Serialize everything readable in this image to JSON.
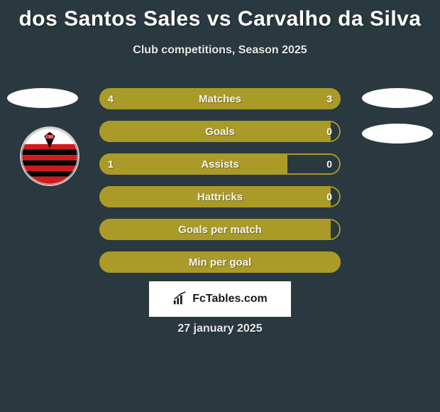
{
  "title": "dos Santos Sales vs Carvalho da Silva",
  "subtitle": "Club competitions, Season 2025",
  "date": "27 january 2025",
  "brand": "FcTables.com",
  "colors": {
    "background": "#2a3840",
    "accent": "#aa9a28",
    "border": "#aa9a28",
    "inner_bg": "transparent",
    "text": "#ffffff"
  },
  "stats": [
    {
      "label": "Matches",
      "left_val": "4",
      "right_val": "3",
      "left_pct": 57,
      "right_pct": 43,
      "left_fill": "#aa9a28",
      "right_fill": "#aa9a28"
    },
    {
      "label": "Goals",
      "left_val": "",
      "right_val": "0",
      "left_pct": 96,
      "right_pct": 0,
      "left_fill": "#aa9a28",
      "right_fill": "transparent"
    },
    {
      "label": "Assists",
      "left_val": "1",
      "right_val": "0",
      "left_pct": 78,
      "right_pct": 0,
      "left_fill": "#aa9a28",
      "right_fill": "transparent"
    },
    {
      "label": "Hattricks",
      "left_val": "",
      "right_val": "0",
      "left_pct": 96,
      "right_pct": 0,
      "left_fill": "#aa9a28",
      "right_fill": "transparent"
    },
    {
      "label": "Goals per match",
      "left_val": "",
      "right_val": "",
      "left_pct": 96,
      "right_pct": 0,
      "left_fill": "#aa9a28",
      "right_fill": "transparent"
    },
    {
      "label": "Min per goal",
      "left_val": "",
      "right_val": "",
      "left_pct": 100,
      "right_pct": 0,
      "left_fill": "#aa9a28",
      "right_fill": "transparent"
    }
  ]
}
